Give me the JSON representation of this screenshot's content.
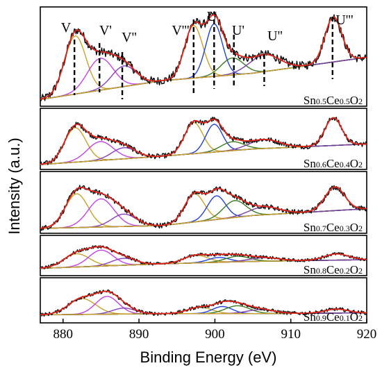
{
  "chart_data": {
    "type": "line",
    "xlabel": "Binding Energy (eV)",
    "ylabel": "Intensity (a.u.)",
    "xlim": [
      877,
      920
    ],
    "x_ticks": [
      880,
      890,
      900,
      910,
      920
    ],
    "x_tick_labels": [
      "880",
      "890",
      "900",
      "910",
      "920"
    ],
    "peak_labels": [
      {
        "text": "V",
        "x": 881.5
      },
      {
        "text": "V'",
        "x": 884.8
      },
      {
        "text": "V''",
        "x": 887.8
      },
      {
        "text": "V'''",
        "x": 897.2
      },
      {
        "text": "U",
        "x": 899.9
      },
      {
        "text": "U'",
        "x": 902.5
      },
      {
        "text": "U''",
        "x": 906.5
      },
      {
        "text": "U'''",
        "x": 915.5
      }
    ],
    "colors": {
      "raw": "#111111",
      "fit": "#e0251b",
      "background": "#d4a017",
      "comp_v": "#c9a227",
      "comp_v1": "#c542e8",
      "comp_v2": "#8a3fc2",
      "comp_u": "#2040e0",
      "comp_u1": "#3a7a22",
      "comp_u2": "#7a3fa0"
    },
    "series": [
      {
        "name": "Sn0.5Ce0.5O2",
        "label_parts": [
          {
            "t": "Sn",
            "s": false
          },
          {
            "t": "0.5",
            "s": true
          },
          {
            "t": "Ce",
            "s": false
          },
          {
            "t": "0.5",
            "s": true
          },
          {
            "t": "O",
            "s": false
          },
          {
            "t": "2",
            "s": true
          }
        ],
        "ylim": [
          0,
          1
        ],
        "baseline": [
          [
            877,
            0.05
          ],
          [
            893,
            0.25
          ],
          [
            905,
            0.33
          ],
          [
            920,
            0.5
          ]
        ],
        "peaks": [
          {
            "label": "V",
            "center": 881.6,
            "height": 0.62,
            "width": 1.4,
            "color_key": "comp_v"
          },
          {
            "label": "V'",
            "center": 884.9,
            "height": 0.34,
            "width": 1.7,
            "color_key": "comp_v1"
          },
          {
            "label": "V''",
            "center": 888.0,
            "height": 0.22,
            "width": 1.6,
            "color_key": "comp_v2"
          },
          {
            "label": "V'''",
            "center": 897.2,
            "height": 0.56,
            "width": 1.2,
            "color_key": "comp_v"
          },
          {
            "label": "U",
            "center": 899.9,
            "height": 0.56,
            "width": 1.1,
            "color_key": "comp_u"
          },
          {
            "label": "U'",
            "center": 902.3,
            "height": 0.18,
            "width": 1.5,
            "color_key": "comp_u1"
          },
          {
            "label": "U''",
            "center": 906.5,
            "height": 0.18,
            "width": 2.0,
            "color_key": "comp_u2"
          },
          {
            "label": "U'''",
            "center": 915.6,
            "height": 0.48,
            "width": 1.1,
            "color_key": "comp_v"
          }
        ]
      },
      {
        "name": "Sn0.6Ce0.4O2",
        "label_parts": [
          {
            "t": "Sn",
            "s": false
          },
          {
            "t": "0.6",
            "s": true
          },
          {
            "t": "Ce",
            "s": false
          },
          {
            "t": "0.4",
            "s": true
          },
          {
            "t": "O",
            "s": false
          },
          {
            "t": "2",
            "s": true
          }
        ],
        "ylim": [
          0,
          1
        ],
        "baseline": [
          [
            877,
            0.05
          ],
          [
            893,
            0.2
          ],
          [
            905,
            0.33
          ],
          [
            920,
            0.42
          ]
        ],
        "peaks": [
          {
            "label": "V",
            "center": 881.6,
            "height": 0.62,
            "width": 1.4,
            "color_key": "comp_v"
          },
          {
            "label": "V'",
            "center": 884.9,
            "height": 0.34,
            "width": 1.7,
            "color_key": "comp_v1"
          },
          {
            "label": "V''",
            "center": 888.0,
            "height": 0.2,
            "width": 1.6,
            "color_key": "comp_v2"
          },
          {
            "label": "V'''",
            "center": 897.2,
            "height": 0.56,
            "width": 1.2,
            "color_key": "comp_v"
          },
          {
            "label": "U",
            "center": 899.9,
            "height": 0.5,
            "width": 1.1,
            "color_key": "comp_u"
          },
          {
            "label": "U'",
            "center": 902.3,
            "height": 0.16,
            "width": 1.5,
            "color_key": "comp_u1"
          },
          {
            "label": "U''",
            "center": 906.5,
            "height": 0.16,
            "width": 2.0,
            "color_key": "comp_u2"
          },
          {
            "label": "U'''",
            "center": 915.6,
            "height": 0.5,
            "width": 1.1,
            "color_key": "comp_v"
          }
        ]
      },
      {
        "name": "Sn0.7Ce0.3O2",
        "label_parts": [
          {
            "t": "Sn",
            "s": false
          },
          {
            "t": "0.7",
            "s": true
          },
          {
            "t": "Ce",
            "s": false
          },
          {
            "t": "0.3",
            "s": true
          },
          {
            "t": "O",
            "s": false
          },
          {
            "t": "2",
            "s": true
          }
        ],
        "ylim": [
          0,
          1
        ],
        "baseline": [
          [
            877,
            0.05
          ],
          [
            893,
            0.1
          ],
          [
            905,
            0.28
          ],
          [
            920,
            0.4
          ]
        ],
        "peaks": [
          {
            "label": "V",
            "center": 881.8,
            "height": 0.6,
            "width": 1.5,
            "color_key": "comp_v"
          },
          {
            "label": "V'",
            "center": 885.0,
            "height": 0.5,
            "width": 1.7,
            "color_key": "comp_v1"
          },
          {
            "label": "V''",
            "center": 888.0,
            "height": 0.22,
            "width": 1.6,
            "color_key": "comp_v2"
          },
          {
            "label": "V'''",
            "center": 897.3,
            "height": 0.5,
            "width": 1.3,
            "color_key": "comp_v"
          },
          {
            "label": "U",
            "center": 900.2,
            "height": 0.42,
            "width": 1.2,
            "color_key": "comp_u"
          },
          {
            "label": "U'",
            "center": 902.6,
            "height": 0.3,
            "width": 1.5,
            "color_key": "comp_u1"
          },
          {
            "label": "U''",
            "center": 906.5,
            "height": 0.14,
            "width": 2.0,
            "color_key": "comp_u2"
          },
          {
            "label": "U'''",
            "center": 915.8,
            "height": 0.42,
            "width": 1.3,
            "color_key": "comp_v"
          }
        ]
      },
      {
        "name": "Sn0.8Ce0.2O2",
        "label_parts": [
          {
            "t": "Sn",
            "s": false
          },
          {
            "t": "0.8",
            "s": true
          },
          {
            "t": "Ce",
            "s": false
          },
          {
            "t": "0.2",
            "s": true
          },
          {
            "t": "O",
            "s": false
          },
          {
            "t": "2",
            "s": true
          }
        ],
        "ylim": [
          0,
          1
        ],
        "baseline": [
          [
            877,
            0.15
          ],
          [
            893,
            0.28
          ],
          [
            905,
            0.35
          ],
          [
            920,
            0.4
          ]
        ],
        "peaks": [
          {
            "label": "V",
            "center": 881.8,
            "height": 0.38,
            "width": 1.7,
            "color_key": "comp_v"
          },
          {
            "label": "V'",
            "center": 885.0,
            "height": 0.46,
            "width": 1.6,
            "color_key": "comp_v1"
          },
          {
            "label": "V''",
            "center": 888.0,
            "height": 0.2,
            "width": 1.6,
            "color_key": "comp_v2"
          },
          {
            "label": "V'''",
            "center": 897.5,
            "height": 0.22,
            "width": 1.6,
            "color_key": "comp_v"
          },
          {
            "label": "U",
            "center": 900.5,
            "height": 0.14,
            "width": 1.4,
            "color_key": "comp_u"
          },
          {
            "label": "U'",
            "center": 903.0,
            "height": 0.16,
            "width": 1.6,
            "color_key": "comp_u1"
          },
          {
            "label": "U''",
            "center": 906.5,
            "height": 0.1,
            "width": 2.0,
            "color_key": "comp_u2"
          },
          {
            "label": "U'''",
            "center": 916.0,
            "height": 0.18,
            "width": 1.6,
            "color_key": "comp_v"
          }
        ]
      },
      {
        "name": "Sn0.9Ce0.1O2",
        "label_parts": [
          {
            "t": "Sn",
            "s": false
          },
          {
            "t": "0.9",
            "s": true
          },
          {
            "t": "Ce",
            "s": false
          },
          {
            "t": "0.1",
            "s": true
          },
          {
            "t": "O",
            "s": false
          },
          {
            "t": "2",
            "s": true
          }
        ],
        "ylim": [
          0,
          1
        ],
        "baseline": [
          [
            877,
            0.15
          ],
          [
            893,
            0.18
          ],
          [
            905,
            0.18
          ],
          [
            920,
            0.2
          ]
        ],
        "peaks": [
          {
            "label": "V",
            "center": 882.5,
            "height": 0.4,
            "width": 1.8,
            "color_key": "comp_v"
          },
          {
            "label": "V'",
            "center": 885.8,
            "height": 0.45,
            "width": 1.5,
            "color_key": "comp_v1"
          },
          {
            "label": "V''",
            "center": 888.0,
            "height": 0.15,
            "width": 1.5,
            "color_key": "comp_v2"
          },
          {
            "label": "V'''",
            "center": 898.0,
            "height": 0.16,
            "width": 1.6,
            "color_key": "comp_v"
          },
          {
            "label": "U",
            "center": 901.0,
            "height": 0.18,
            "width": 1.3,
            "color_key": "comp_u"
          },
          {
            "label": "U'",
            "center": 903.0,
            "height": 0.2,
            "width": 1.6,
            "color_key": "comp_u1"
          },
          {
            "label": "U''",
            "center": 906.0,
            "height": 0.1,
            "width": 1.8,
            "color_key": "comp_u2"
          },
          {
            "label": "U'''",
            "center": 916.0,
            "height": 0.1,
            "width": 1.5,
            "color_key": "comp_v"
          }
        ]
      }
    ]
  }
}
